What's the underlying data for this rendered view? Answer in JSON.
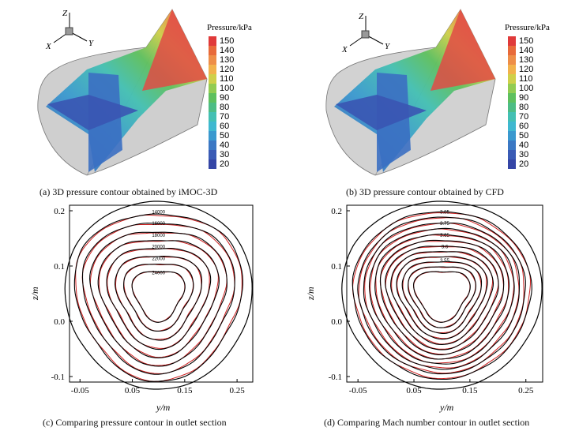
{
  "captions": {
    "a": "(a) 3D pressure contour obtained by iMOC-3D",
    "b": "(b) 3D pressure contour obtained by CFD",
    "c": "(c) Comparing pressure contour in outlet section",
    "d": "(d) Comparing Mach number contour in outlet section"
  },
  "axes_triad": {
    "z": "Z",
    "x": "X",
    "y": "Y"
  },
  "colorbar": {
    "title": "Pressure/kPa",
    "ticks": [
      "150",
      "140",
      "130",
      "120",
      "110",
      "100",
      "90",
      "80",
      "70",
      "60",
      "50",
      "40",
      "30",
      "20"
    ],
    "colors": [
      "#e03a3a",
      "#e86a3a",
      "#ee8e48",
      "#f2b24c",
      "#cfd04a",
      "#92cc52",
      "#5ec05e",
      "#4dbd85",
      "#43c0b3",
      "#3fb8d0",
      "#3a99cf",
      "#3b78c4",
      "#3a5bb5",
      "#3546a6"
    ]
  },
  "chart_data": [
    {
      "type": "contour",
      "xlabel": "y/m",
      "ylabel": "z/m",
      "xticks": [
        "-0.05",
        "0.05",
        "0.15",
        "0.25"
      ],
      "yticks": [
        "0.2",
        "0.1",
        "0.0",
        "-0.1"
      ],
      "xlim": [
        -0.07,
        0.28
      ],
      "ylim": [
        -0.11,
        0.21
      ],
      "series": [
        {
          "name": "",
          "color": "#000000"
        },
        {
          "name": "",
          "color": "#cc1f1f"
        }
      ],
      "labels": [
        "14000",
        "16000",
        "18000",
        "20000",
        "22000",
        "24000"
      ]
    },
    {
      "type": "contour",
      "xlabel": "y/m",
      "ylabel": "z/m",
      "xticks": [
        "-0.05",
        "0.05",
        "0.15",
        "0.25"
      ],
      "yticks": [
        "0.2",
        "0.1",
        "0.0",
        "-0.1"
      ],
      "xlim": [
        -0.07,
        0.28
      ],
      "ylim": [
        -0.11,
        0.21
      ],
      "series": [
        {
          "name": "",
          "color": "#000000"
        },
        {
          "name": "",
          "color": "#cc1f1f"
        }
      ],
      "labels": [
        "3.85",
        "3.75",
        "3.65",
        "3.6",
        "3.55"
      ]
    }
  ]
}
